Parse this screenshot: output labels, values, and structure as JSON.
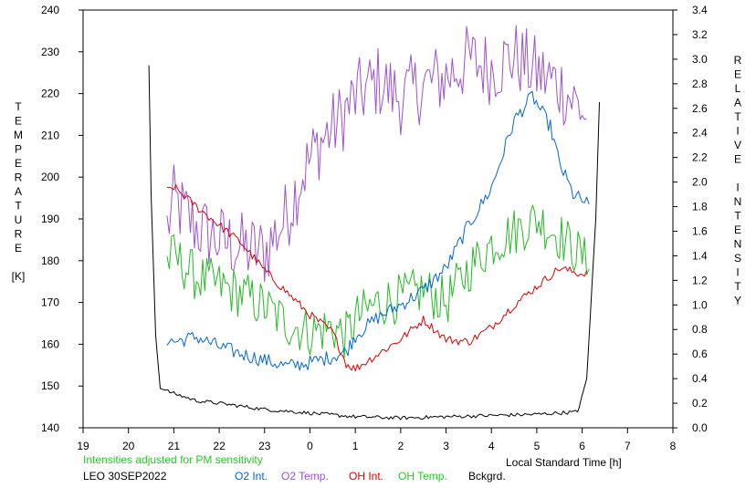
{
  "chart_data": {
    "type": "line",
    "x_axis": {
      "ticks": [
        "19",
        "20",
        "21",
        "22",
        "23",
        "0",
        "1",
        "2",
        "3",
        "4",
        "5",
        "6",
        "7",
        "8"
      ],
      "label": "Local Standard Time [h]"
    },
    "y_left": {
      "ticks": [
        "140",
        "150",
        "160",
        "170",
        "180",
        "190",
        "200",
        "210",
        "220",
        "230",
        "240"
      ],
      "range": [
        140,
        240
      ],
      "label_letters": [
        "T",
        "E",
        "M",
        "P",
        "E",
        "R",
        "A",
        "T",
        "U",
        "R",
        "E",
        "",
        "[K]"
      ]
    },
    "y_right": {
      "ticks": [
        "0.0",
        "0.2",
        "0.4",
        "0.6",
        "0.8",
        "1.0",
        "1.2",
        "1.4",
        "1.6",
        "1.8",
        "2.0",
        "2.2",
        "2.4",
        "2.6",
        "2.8",
        "3.0",
        "3.2",
        "3.4"
      ],
      "range": [
        0.0,
        3.4
      ],
      "label_letters": [
        "R",
        "E",
        "L",
        "A",
        "T",
        "I",
        "V",
        "E",
        "",
        "I",
        "N",
        "T",
        "E",
        "N",
        "S",
        "I",
        "T",
        "Y"
      ]
    },
    "note": "Intensities adjusted for PM sensitivity",
    "station_date": "LEO 30SEP2022",
    "legend": [
      {
        "label": "O2 Int.",
        "color": "#0066dd"
      },
      {
        "label": "O2 Temp.",
        "color": "#a050d0"
      },
      {
        "label": "OH Int.",
        "color": "#dd0000"
      },
      {
        "label": "OH Temp.",
        "color": "#22bb22"
      },
      {
        "label": "Bckgrd.",
        "color": "#000000"
      }
    ],
    "series": [
      {
        "name": "O2 Temp.",
        "axis": "left",
        "color": "#a050d0",
        "noise": 9,
        "points": [
          [
            20.85,
            188
          ],
          [
            21.0,
            194
          ],
          [
            21.5,
            188
          ],
          [
            22.0,
            185
          ],
          [
            22.5,
            183
          ],
          [
            23.0,
            182
          ],
          [
            23.5,
            191
          ],
          [
            23.8,
            200
          ],
          [
            0.2,
            208
          ],
          [
            0.6,
            213
          ],
          [
            1.0,
            219
          ],
          [
            1.5,
            223
          ],
          [
            2.0,
            219
          ],
          [
            2.5,
            222
          ],
          [
            3.0,
            224
          ],
          [
            3.5,
            228
          ],
          [
            4.0,
            226
          ],
          [
            4.5,
            229
          ],
          [
            5.0,
            225
          ],
          [
            5.5,
            222
          ],
          [
            6.0,
            216
          ],
          [
            6.1,
            214
          ]
        ]
      },
      {
        "name": "OH Temp.",
        "axis": "left",
        "color": "#22bb22",
        "noise": 6,
        "points": [
          [
            20.85,
            180
          ],
          [
            21.0,
            181
          ],
          [
            21.5,
            176
          ],
          [
            22.0,
            174
          ],
          [
            22.5,
            172
          ],
          [
            23.0,
            169
          ],
          [
            23.5,
            165
          ],
          [
            0.0,
            163
          ],
          [
            0.5,
            164
          ],
          [
            0.8,
            162
          ],
          [
            1.0,
            166
          ],
          [
            1.5,
            170
          ],
          [
            2.0,
            171
          ],
          [
            2.5,
            173
          ],
          [
            3.0,
            170
          ],
          [
            3.5,
            178
          ],
          [
            4.0,
            184
          ],
          [
            4.5,
            187
          ],
          [
            5.0,
            190
          ],
          [
            5.5,
            186
          ],
          [
            6.0,
            181
          ],
          [
            6.15,
            178
          ]
        ]
      },
      {
        "name": "O2 Int.",
        "axis": "right",
        "color": "#0066dd",
        "noise": 0.06,
        "points": [
          [
            20.85,
            0.72
          ],
          [
            21.0,
            0.7
          ],
          [
            21.5,
            0.74
          ],
          [
            22.0,
            0.66
          ],
          [
            22.5,
            0.6
          ],
          [
            23.0,
            0.55
          ],
          [
            23.5,
            0.5
          ],
          [
            0.0,
            0.53
          ],
          [
            0.5,
            0.58
          ],
          [
            0.8,
            0.62
          ],
          [
            1.0,
            0.75
          ],
          [
            1.5,
            0.9
          ],
          [
            2.0,
            1.0
          ],
          [
            2.5,
            1.12
          ],
          [
            3.0,
            1.3
          ],
          [
            3.5,
            1.65
          ],
          [
            4.0,
            1.95
          ],
          [
            4.5,
            2.5
          ],
          [
            4.9,
            2.7
          ],
          [
            5.3,
            2.45
          ],
          [
            5.5,
            2.15
          ],
          [
            5.8,
            1.9
          ],
          [
            6.0,
            1.85
          ],
          [
            6.15,
            1.82
          ]
        ]
      },
      {
        "name": "OH Int.",
        "axis": "right",
        "color": "#dd0000",
        "noise": 0.035,
        "points": [
          [
            20.85,
            1.93
          ],
          [
            21.0,
            1.96
          ],
          [
            21.5,
            1.8
          ],
          [
            22.0,
            1.65
          ],
          [
            22.5,
            1.5
          ],
          [
            23.0,
            1.28
          ],
          [
            23.5,
            1.1
          ],
          [
            0.0,
            0.92
          ],
          [
            0.5,
            0.78
          ],
          [
            0.8,
            0.52
          ],
          [
            1.0,
            0.48
          ],
          [
            1.5,
            0.6
          ],
          [
            2.0,
            0.72
          ],
          [
            2.5,
            0.88
          ],
          [
            3.0,
            0.72
          ],
          [
            3.5,
            0.7
          ],
          [
            4.0,
            0.82
          ],
          [
            4.5,
            1.0
          ],
          [
            5.0,
            1.15
          ],
          [
            5.5,
            1.3
          ],
          [
            6.0,
            1.25
          ],
          [
            6.1,
            1.28
          ]
        ]
      },
      {
        "name": "Bckgrd.",
        "axis": "right",
        "color": "#000000",
        "noise": 0.015,
        "points": [
          [
            20.45,
            2.95
          ],
          [
            20.5,
            1.9
          ],
          [
            20.6,
            0.75
          ],
          [
            20.7,
            0.32
          ],
          [
            21.0,
            0.28
          ],
          [
            21.5,
            0.22
          ],
          [
            22.0,
            0.2
          ],
          [
            23.0,
            0.15
          ],
          [
            0.0,
            0.12
          ],
          [
            1.0,
            0.09
          ],
          [
            2.0,
            0.08
          ],
          [
            3.0,
            0.09
          ],
          [
            4.0,
            0.1
          ],
          [
            5.0,
            0.11
          ],
          [
            5.9,
            0.13
          ],
          [
            6.1,
            0.4
          ],
          [
            6.3,
            1.7
          ],
          [
            6.38,
            2.65
          ]
        ]
      }
    ]
  }
}
